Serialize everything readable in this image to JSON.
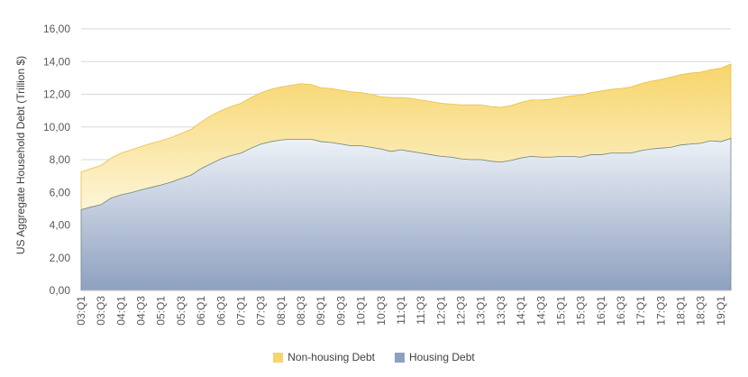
{
  "chart_data": {
    "type": "area",
    "stacked": true,
    "ylabel": "US Aggregate Household Debt (Trillion $)",
    "ylim": [
      0,
      16
    ],
    "yticks": [
      "0,00",
      "2,00",
      "4,00",
      "6,00",
      "8,00",
      "10,00",
      "12,00",
      "14,00",
      "16,00"
    ],
    "xtick_labels": [
      "03:Q1",
      "03:Q3",
      "04:Q1",
      "04:Q3",
      "05:Q1",
      "05:Q3",
      "06:Q1",
      "06:Q3",
      "07:Q1",
      "07:Q3",
      "08:Q1",
      "08:Q3",
      "09:Q1",
      "09:Q3",
      "10:Q1",
      "10:Q3",
      "11:Q1",
      "11:Q3",
      "12:Q1",
      "12:Q3",
      "13:Q1",
      "13:Q3",
      "14:Q1",
      "14:Q3",
      "15:Q1",
      "15:Q3",
      "16:Q1",
      "16:Q3",
      "17:Q1",
      "17:Q3",
      "18:Q1",
      "18:Q3",
      "19:Q1"
    ],
    "x": [
      "03:Q1",
      "03:Q2",
      "03:Q3",
      "03:Q4",
      "04:Q1",
      "04:Q2",
      "04:Q3",
      "04:Q4",
      "05:Q1",
      "05:Q2",
      "05:Q3",
      "05:Q4",
      "06:Q1",
      "06:Q2",
      "06:Q3",
      "06:Q4",
      "07:Q1",
      "07:Q2",
      "07:Q3",
      "07:Q4",
      "08:Q1",
      "08:Q2",
      "08:Q3",
      "08:Q4",
      "09:Q1",
      "09:Q2",
      "09:Q3",
      "09:Q4",
      "10:Q1",
      "10:Q2",
      "10:Q3",
      "10:Q4",
      "11:Q1",
      "11:Q2",
      "11:Q3",
      "11:Q4",
      "12:Q1",
      "12:Q2",
      "12:Q3",
      "12:Q4",
      "13:Q1",
      "13:Q2",
      "13:Q3",
      "13:Q4",
      "14:Q1",
      "14:Q2",
      "14:Q3",
      "14:Q4",
      "15:Q1",
      "15:Q2",
      "15:Q3",
      "15:Q4",
      "16:Q1",
      "16:Q2",
      "16:Q3",
      "16:Q4",
      "17:Q1",
      "17:Q2",
      "17:Q3",
      "17:Q4",
      "18:Q1",
      "18:Q2",
      "18:Q3",
      "18:Q4",
      "19:Q1",
      "19:Q2"
    ],
    "series": [
      {
        "name": "Housing Debt",
        "color": "#8ea0c0",
        "values": [
          4.94,
          5.1,
          5.25,
          5.65,
          5.85,
          5.98,
          6.15,
          6.3,
          6.45,
          6.62,
          6.85,
          7.05,
          7.45,
          7.75,
          8.05,
          8.25,
          8.4,
          8.7,
          8.95,
          9.1,
          9.2,
          9.25,
          9.25,
          9.25,
          9.1,
          9.05,
          8.95,
          8.85,
          8.85,
          8.75,
          8.65,
          8.5,
          8.6,
          8.5,
          8.4,
          8.3,
          8.2,
          8.15,
          8.05,
          8.0,
          8.0,
          7.9,
          7.85,
          7.95,
          8.1,
          8.2,
          8.15,
          8.15,
          8.2,
          8.2,
          8.15,
          8.3,
          8.3,
          8.4,
          8.4,
          8.4,
          8.55,
          8.65,
          8.7,
          8.75,
          8.9,
          8.95,
          9.0,
          9.15,
          9.1,
          9.3
        ]
      },
      {
        "name": "Non-housing Debt",
        "color": "#f7d56a",
        "values": [
          2.31,
          2.35,
          2.4,
          2.45,
          2.55,
          2.62,
          2.65,
          2.7,
          2.7,
          2.73,
          2.75,
          2.8,
          2.85,
          2.95,
          2.95,
          3.0,
          3.05,
          3.1,
          3.15,
          3.2,
          3.25,
          3.3,
          3.4,
          3.35,
          3.3,
          3.3,
          3.3,
          3.3,
          3.25,
          3.25,
          3.2,
          3.3,
          3.2,
          3.25,
          3.25,
          3.25,
          3.25,
          3.25,
          3.3,
          3.35,
          3.35,
          3.35,
          3.35,
          3.35,
          3.4,
          3.45,
          3.5,
          3.55,
          3.6,
          3.7,
          3.8,
          3.8,
          3.9,
          3.9,
          3.95,
          4.05,
          4.1,
          4.15,
          4.2,
          4.3,
          4.3,
          4.35,
          4.35,
          4.35,
          4.5,
          4.55
        ]
      }
    ],
    "legend_position": "bottom",
    "grid": "horizontal"
  }
}
